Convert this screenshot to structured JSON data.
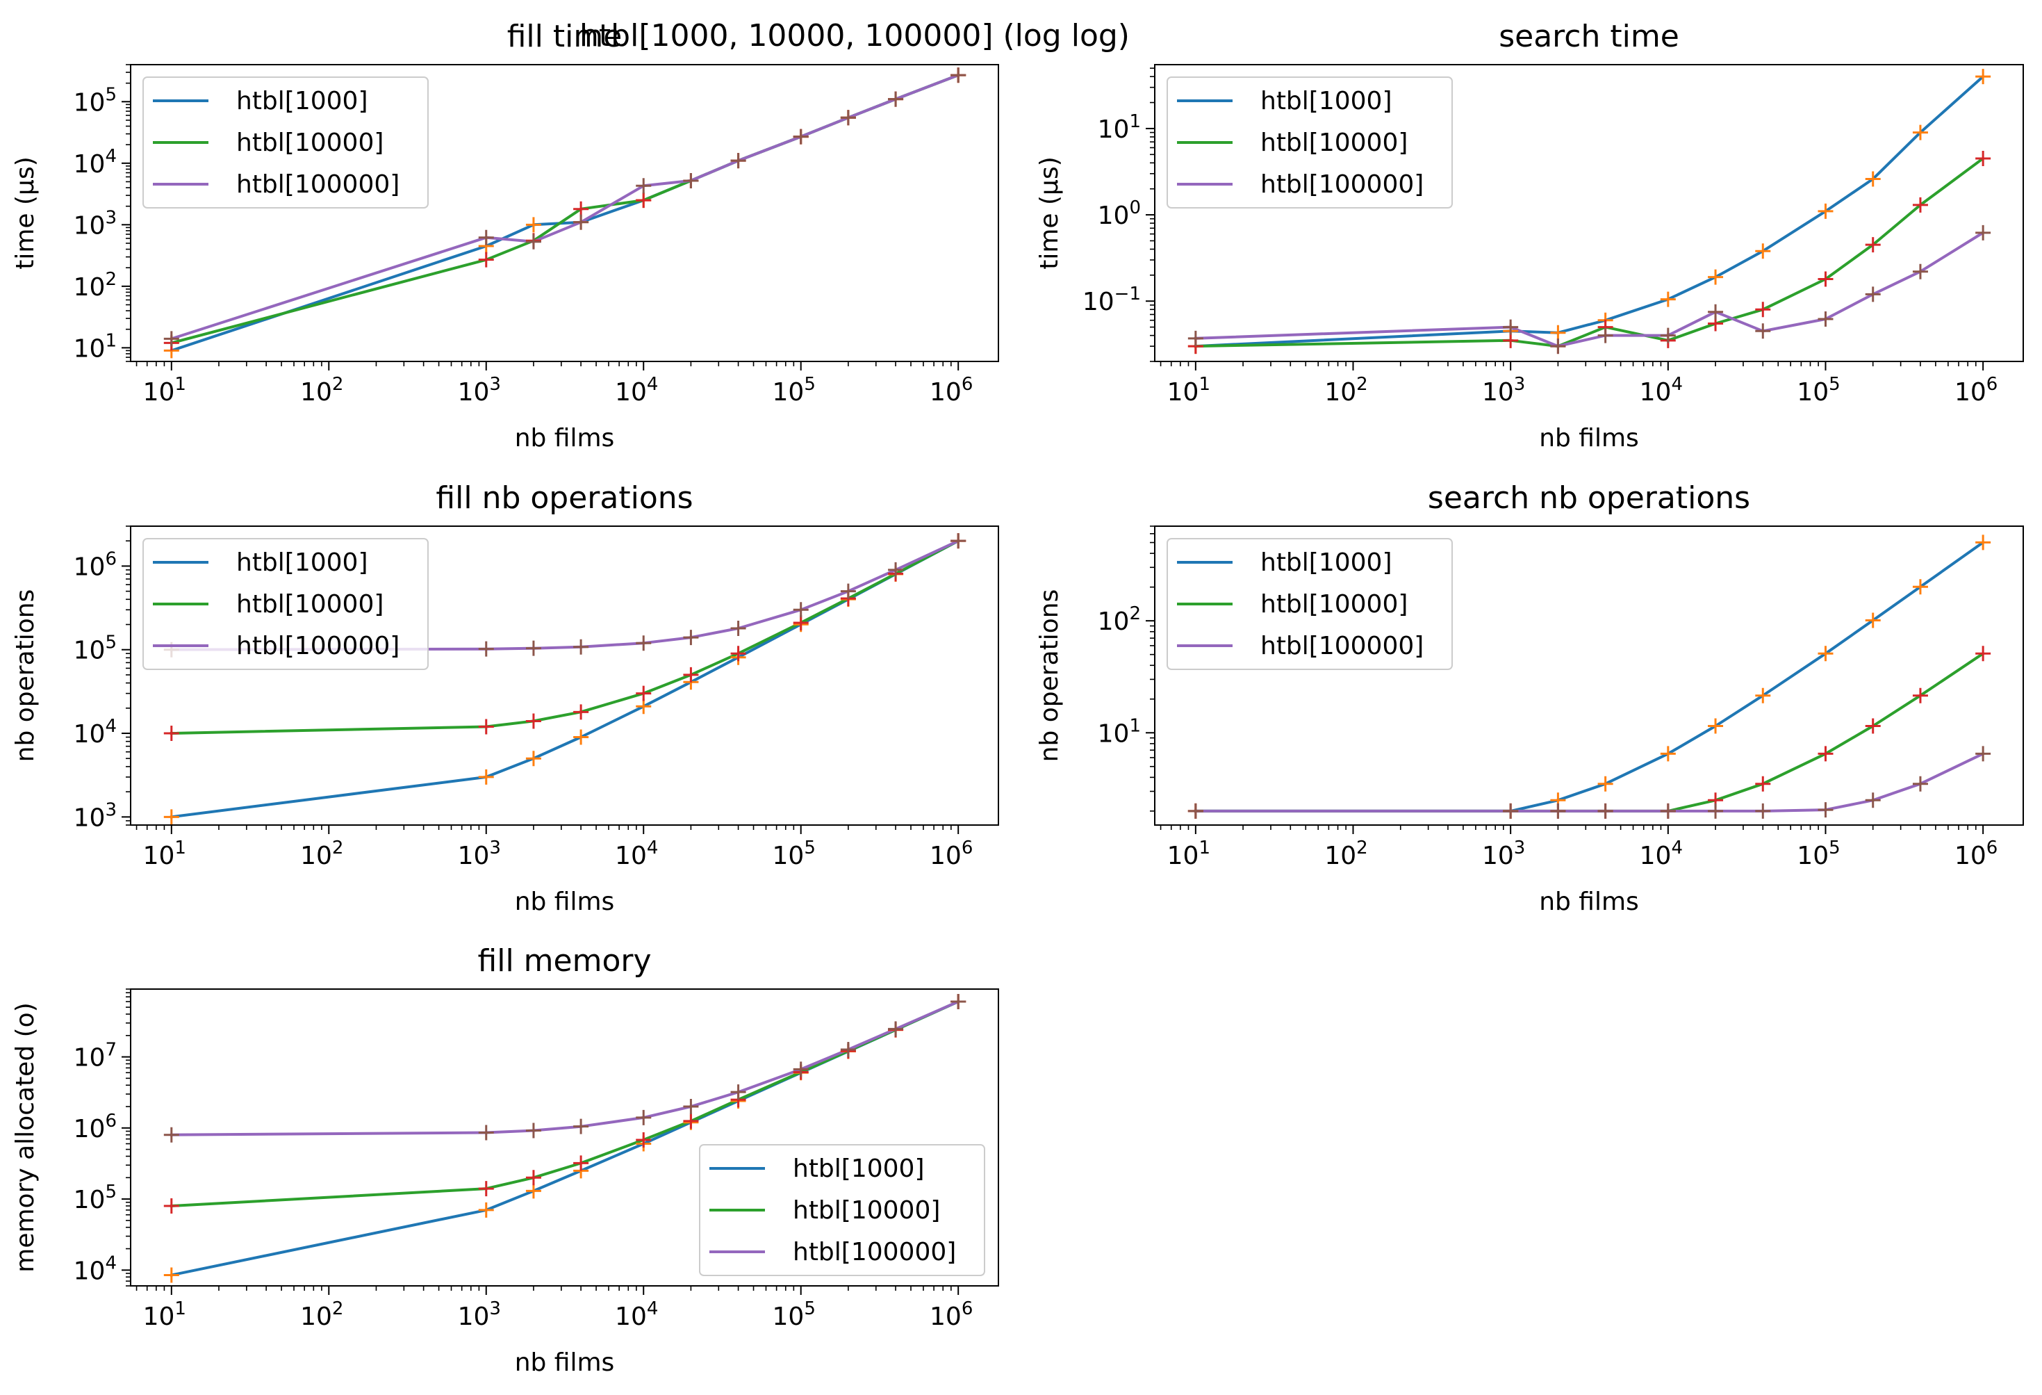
{
  "figure": {
    "suptitle": "htbl[1000, 10000, 100000] (log log)"
  },
  "colors": {
    "htbl1000": "#1f77b4",
    "htbl10000": "#2ca02c",
    "htbl100000": "#9467bd",
    "marker_orange": "#ff7f0e",
    "marker_red": "#d62728",
    "marker_brown": "#8c564b"
  },
  "chart_data": [
    {
      "type": "line",
      "title": "fill time",
      "xlabel": "nb films",
      "ylabel": "time (µs)",
      "xscale": "log",
      "yscale": "log",
      "xlim": [
        5.5,
        1800000
      ],
      "ylim": [
        6,
        400000
      ],
      "xticks": [
        {
          "v": 10,
          "e": "1"
        },
        {
          "v": 100,
          "e": "2"
        },
        {
          "v": 1000,
          "e": "3"
        },
        {
          "v": 10000,
          "e": "4"
        },
        {
          "v": 100000,
          "e": "5"
        },
        {
          "v": 1000000,
          "e": "6"
        }
      ],
      "yticks": [
        {
          "v": 10,
          "e": "1"
        },
        {
          "v": 100,
          "e": "2"
        },
        {
          "v": 1000,
          "e": "3"
        },
        {
          "v": 10000,
          "e": "4"
        },
        {
          "v": 100000,
          "e": "5"
        }
      ],
      "legend": "upper-left",
      "x": [
        10,
        1000,
        2000,
        4000,
        10000,
        20000,
        40000,
        100000,
        200000,
        400000,
        1000000
      ],
      "series": [
        {
          "name": "htbl[1000]",
          "color": "#1f77b4",
          "marker_color": "#ff7f0e",
          "values": [
            9,
            450,
            1000,
            1100,
            2500,
            5200,
            11000,
            27000,
            55000,
            110000,
            270000
          ]
        },
        {
          "name": "htbl[10000]",
          "color": "#2ca02c",
          "marker_color": "#d62728",
          "values": [
            12,
            270,
            550,
            1800,
            2500,
            5200,
            11000,
            27000,
            55000,
            110000,
            270000
          ]
        },
        {
          "name": "htbl[100000]",
          "color": "#9467bd",
          "marker_color": "#8c564b",
          "values": [
            14,
            620,
            530,
            1100,
            4300,
            5200,
            11000,
            27000,
            55000,
            110000,
            270000
          ]
        }
      ]
    },
    {
      "type": "line",
      "title": "search time",
      "xlabel": "nb films",
      "ylabel": "time (µs)",
      "xscale": "log",
      "yscale": "log",
      "xlim": [
        5.5,
        1800000
      ],
      "ylim": [
        0.02,
        55
      ],
      "xticks": [
        {
          "v": 10,
          "e": "1"
        },
        {
          "v": 100,
          "e": "2"
        },
        {
          "v": 1000,
          "e": "3"
        },
        {
          "v": 10000,
          "e": "4"
        },
        {
          "v": 100000,
          "e": "5"
        },
        {
          "v": 1000000,
          "e": "6"
        }
      ],
      "yticks": [
        {
          "v": 0.1,
          "e": "−1"
        },
        {
          "v": 1,
          "e": "0"
        },
        {
          "v": 10,
          "e": "1"
        }
      ],
      "legend": "upper-left",
      "x": [
        10,
        1000,
        2000,
        4000,
        10000,
        20000,
        40000,
        100000,
        200000,
        400000,
        1000000
      ],
      "series": [
        {
          "name": "htbl[1000]",
          "color": "#1f77b4",
          "marker_color": "#ff7f0e",
          "values": [
            0.03,
            0.045,
            0.043,
            0.06,
            0.105,
            0.19,
            0.38,
            1.1,
            2.6,
            9,
            40
          ]
        },
        {
          "name": "htbl[10000]",
          "color": "#2ca02c",
          "marker_color": "#d62728",
          "values": [
            0.03,
            0.035,
            0.03,
            0.05,
            0.035,
            0.055,
            0.08,
            0.18,
            0.45,
            1.3,
            4.5
          ]
        },
        {
          "name": "htbl[100000]",
          "color": "#9467bd",
          "marker_color": "#8c564b",
          "values": [
            0.037,
            0.05,
            0.03,
            0.04,
            0.04,
            0.075,
            0.045,
            0.062,
            0.12,
            0.22,
            0.62
          ]
        }
      ]
    },
    {
      "type": "line",
      "title": "fill nb operations",
      "xlabel": "nb films",
      "ylabel": "nb operations",
      "xscale": "log",
      "yscale": "log",
      "xlim": [
        5.5,
        1800000
      ],
      "ylim": [
        800,
        3000000
      ],
      "xticks": [
        {
          "v": 10,
          "e": "1"
        },
        {
          "v": 100,
          "e": "2"
        },
        {
          "v": 1000,
          "e": "3"
        },
        {
          "v": 10000,
          "e": "4"
        },
        {
          "v": 100000,
          "e": "5"
        },
        {
          "v": 1000000,
          "e": "6"
        }
      ],
      "yticks": [
        {
          "v": 1000,
          "e": "3"
        },
        {
          "v": 10000,
          "e": "4"
        },
        {
          "v": 100000,
          "e": "5"
        },
        {
          "v": 1000000,
          "e": "6"
        }
      ],
      "legend": "upper-left",
      "x": [
        10,
        1000,
        2000,
        4000,
        10000,
        20000,
        40000,
        100000,
        200000,
        400000,
        1000000
      ],
      "series": [
        {
          "name": "htbl[1000]",
          "color": "#1f77b4",
          "marker_color": "#ff7f0e",
          "values": [
            1000,
            3000,
            5000,
            9000,
            21000,
            41000,
            81000,
            201000,
            401000,
            801000,
            2000000
          ]
        },
        {
          "name": "htbl[10000]",
          "color": "#2ca02c",
          "marker_color": "#d62728",
          "values": [
            10000,
            12000,
            14000,
            18000,
            30000,
            50000,
            90000,
            210000,
            410000,
            810000,
            2000000
          ]
        },
        {
          "name": "htbl[100000]",
          "color": "#9467bd",
          "marker_color": "#8c564b",
          "values": [
            100000,
            102000,
            104000,
            108000,
            120000,
            140000,
            180000,
            300000,
            500000,
            900000,
            2000000
          ]
        }
      ]
    },
    {
      "type": "line",
      "title": "search nb operations",
      "xlabel": "nb films",
      "ylabel": "nb operations",
      "xscale": "log",
      "yscale": "log",
      "xlim": [
        5.5,
        1800000
      ],
      "ylim": [
        1.5,
        700
      ],
      "xticks": [
        {
          "v": 10,
          "e": "1"
        },
        {
          "v": 100,
          "e": "2"
        },
        {
          "v": 1000,
          "e": "3"
        },
        {
          "v": 10000,
          "e": "4"
        },
        {
          "v": 100000,
          "e": "5"
        },
        {
          "v": 1000000,
          "e": "6"
        }
      ],
      "yticks": [
        {
          "v": 10,
          "e": "1"
        },
        {
          "v": 100,
          "e": "2"
        }
      ],
      "legend": "upper-left",
      "x": [
        10,
        1000,
        2000,
        4000,
        10000,
        20000,
        40000,
        100000,
        200000,
        400000,
        1000000
      ],
      "series": [
        {
          "name": "htbl[1000]",
          "color": "#1f77b4",
          "marker_color": "#ff7f0e",
          "values": [
            2,
            2,
            2.5,
            3.5,
            6.5,
            11.5,
            21.5,
            51,
            101,
            201,
            501
          ]
        },
        {
          "name": "htbl[10000]",
          "color": "#2ca02c",
          "marker_color": "#d62728",
          "values": [
            2,
            2,
            2,
            2,
            2,
            2.5,
            3.5,
            6.5,
            11.5,
            21.5,
            51
          ]
        },
        {
          "name": "htbl[100000]",
          "color": "#9467bd",
          "marker_color": "#8c564b",
          "values": [
            2,
            2,
            2,
            2,
            2,
            2,
            2,
            2.05,
            2.5,
            3.5,
            6.5
          ]
        }
      ]
    },
    {
      "type": "line",
      "title": "fill memory",
      "xlabel": "nb films",
      "ylabel": "memory allocated (o)",
      "xscale": "log",
      "yscale": "log",
      "xlim": [
        5.5,
        1800000
      ],
      "ylim": [
        6000,
        90000000
      ],
      "xticks": [
        {
          "v": 10,
          "e": "1"
        },
        {
          "v": 100,
          "e": "2"
        },
        {
          "v": 1000,
          "e": "3"
        },
        {
          "v": 10000,
          "e": "4"
        },
        {
          "v": 100000,
          "e": "5"
        },
        {
          "v": 1000000,
          "e": "6"
        }
      ],
      "yticks": [
        {
          "v": 10000,
          "e": "4"
        },
        {
          "v": 100000,
          "e": "5"
        },
        {
          "v": 1000000,
          "e": "6"
        },
        {
          "v": 10000000,
          "e": "7"
        }
      ],
      "legend": "lower-right",
      "x": [
        10,
        1000,
        2000,
        4000,
        10000,
        20000,
        40000,
        100000,
        200000,
        400000,
        1000000
      ],
      "series": [
        {
          "name": "htbl[1000]",
          "color": "#1f77b4",
          "marker_color": "#ff7f0e",
          "values": [
            8500,
            70000,
            130000,
            250000,
            600000,
            1200000,
            2400000,
            6000000,
            12000000,
            24000000,
            60000000
          ]
        },
        {
          "name": "htbl[10000]",
          "color": "#2ca02c",
          "marker_color": "#d62728",
          "values": [
            80000,
            140000,
            200000,
            320000,
            680000,
            1250000,
            2500000,
            6100000,
            12100000,
            24100000,
            60000000
          ]
        },
        {
          "name": "htbl[100000]",
          "color": "#9467bd",
          "marker_color": "#8c564b",
          "values": [
            800000,
            860000,
            920000,
            1050000,
            1400000,
            2000000,
            3200000,
            6700000,
            12700000,
            24700000,
            60000000
          ]
        }
      ]
    }
  ]
}
